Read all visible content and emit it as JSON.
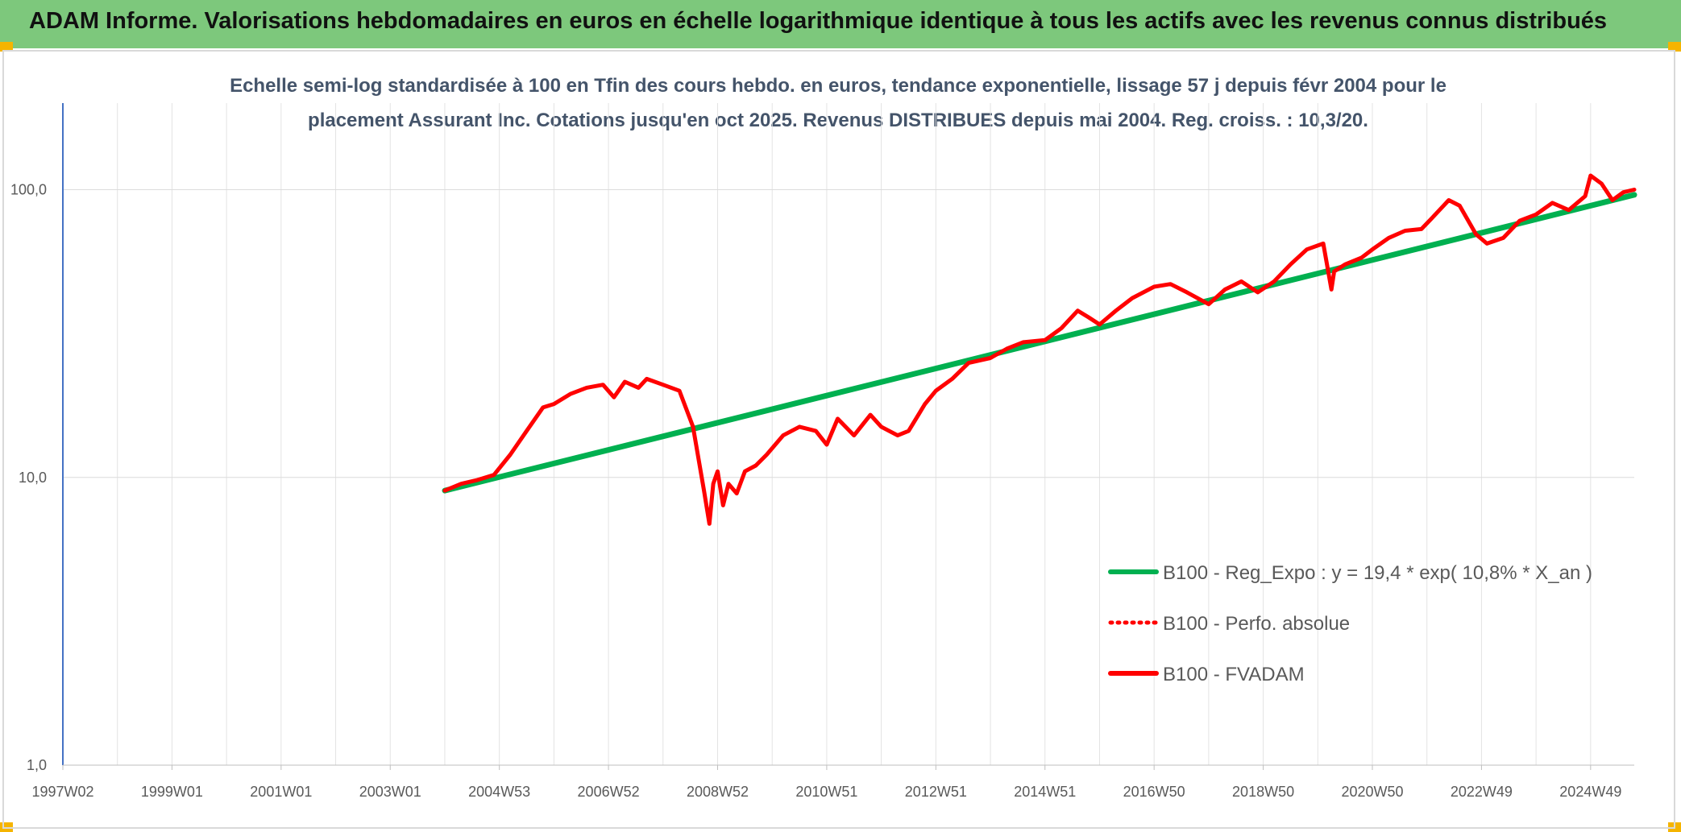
{
  "header": {
    "title": "ADAM Informe. Valorisations hebdomadaires en euros en échelle logarithmique identique à tous les actifs avec les revenus connus distribués"
  },
  "colors": {
    "header_bg": "#7dc87c",
    "accent": "#f5b400",
    "trend": "#00b050",
    "perf": "#ff0000"
  },
  "chart_data": {
    "type": "line",
    "subtitle_lines": [
      "Echelle semi-log standardisée à 100 en Tfin des cours hebdo. en euros, tendance exponentielle, lissage 57 j depuis févr 2004 pour le",
      "placement Assurant Inc. Cotations jusqu'en oct 2025. Revenus DISTRIBUES depuis mai 2004. Reg. croiss. : 10,3/20."
    ],
    "y_scale": "log",
    "ylim": [
      1,
      200
    ],
    "y_ticks": [
      {
        "value": 1,
        "label": "1,0"
      },
      {
        "value": 10,
        "label": "10,0"
      },
      {
        "value": 100,
        "label": "100,0"
      }
    ],
    "xlim": [
      1997.0,
      2025.8
    ],
    "x_ticks": [
      {
        "value": 1997.0,
        "label": "1997W02"
      },
      {
        "value": 1999.0,
        "label": "1999W01"
      },
      {
        "value": 2001.0,
        "label": "2001W01"
      },
      {
        "value": 2003.0,
        "label": "2003W01"
      },
      {
        "value": 2005.0,
        "label": "2004W53"
      },
      {
        "value": 2007.0,
        "label": "2006W52"
      },
      {
        "value": 2009.0,
        "label": "2008W52"
      },
      {
        "value": 2011.0,
        "label": "2010W51"
      },
      {
        "value": 2013.0,
        "label": "2012W51"
      },
      {
        "value": 2015.0,
        "label": "2014W51"
      },
      {
        "value": 2017.0,
        "label": "2016W50"
      },
      {
        "value": 2019.0,
        "label": "2018W50"
      },
      {
        "value": 2021.0,
        "label": "2020W50"
      },
      {
        "value": 2023.0,
        "label": "2022W49"
      },
      {
        "value": 2025.0,
        "label": "2024W49"
      }
    ],
    "minor_gridlines": [
      1998.0,
      2000.0,
      2002.0,
      2004.0,
      2006.0,
      2008.0,
      2010.0,
      2012.0,
      2014.0,
      2016.0,
      2018.0,
      2020.0,
      2022.0,
      2024.0
    ],
    "legend_position": "bottom-right",
    "series": [
      {
        "name": "B100 - Reg_Expo : y = 19,4 * exp( 10,8% *  X_an )",
        "color": "#00b050",
        "style": "solid",
        "x": [
          2004.0,
          2025.8
        ],
        "y": [
          9.0,
          96.0
        ]
      },
      {
        "name": "B100 - Perfo. absolue",
        "color": "#ff0000",
        "style": "dotted",
        "x": [],
        "y": []
      },
      {
        "name": "B100 - FVADAM",
        "color": "#ff0000",
        "style": "solid",
        "x": [
          2004.0,
          2004.3,
          2004.6,
          2004.9,
          2005.2,
          2005.5,
          2005.8,
          2006.0,
          2006.3,
          2006.6,
          2006.9,
          2007.1,
          2007.3,
          2007.55,
          2007.7,
          2008.0,
          2008.3,
          2008.55,
          2008.75,
          2008.85,
          2008.92,
          2009.0,
          2009.1,
          2009.2,
          2009.35,
          2009.5,
          2009.7,
          2009.9,
          2010.2,
          2010.5,
          2010.8,
          2011.0,
          2011.2,
          2011.5,
          2011.8,
          2012.0,
          2012.3,
          2012.5,
          2012.8,
          2013.0,
          2013.3,
          2013.6,
          2014.0,
          2014.3,
          2014.6,
          2015.0,
          2015.3,
          2015.6,
          2015.8,
          2016.0,
          2016.3,
          2016.6,
          2017.0,
          2017.3,
          2017.6,
          2018.0,
          2018.3,
          2018.6,
          2018.9,
          2019.2,
          2019.5,
          2019.8,
          2020.1,
          2020.25,
          2020.3,
          2020.5,
          2020.8,
          2021.0,
          2021.3,
          2021.6,
          2021.9,
          2022.1,
          2022.4,
          2022.6,
          2022.9,
          2023.1,
          2023.4,
          2023.7,
          2024.0,
          2024.3,
          2024.6,
          2024.9,
          2025.0,
          2025.2,
          2025.4,
          2025.6,
          2025.8
        ],
        "y": [
          9.0,
          9.5,
          9.8,
          10.2,
          12.0,
          14.5,
          17.5,
          18.0,
          19.5,
          20.5,
          21.0,
          19.0,
          21.5,
          20.5,
          22.0,
          21.0,
          20.0,
          15.0,
          9.0,
          6.9,
          9.5,
          10.5,
          8.0,
          9.5,
          8.8,
          10.5,
          11.0,
          12.0,
          14.0,
          15.0,
          14.5,
          13.0,
          16.0,
          14.0,
          16.5,
          15.0,
          14.0,
          14.5,
          18.0,
          20.0,
          22.0,
          25.0,
          26.0,
          28.0,
          29.5,
          30.0,
          33.0,
          38.0,
          36.0,
          34.0,
          38.0,
          42.0,
          46.0,
          47.0,
          44.0,
          40.0,
          45.0,
          48.0,
          44.0,
          48.0,
          55.0,
          62.0,
          65.0,
          45.0,
          52.0,
          55.0,
          58.0,
          62.0,
          68.0,
          72.0,
          73.0,
          80.0,
          92.0,
          88.0,
          70.0,
          65.0,
          68.0,
          78.0,
          82.0,
          90.0,
          85.0,
          95.0,
          112.0,
          105.0,
          92.0,
          98.0,
          100.0
        ]
      }
    ]
  }
}
